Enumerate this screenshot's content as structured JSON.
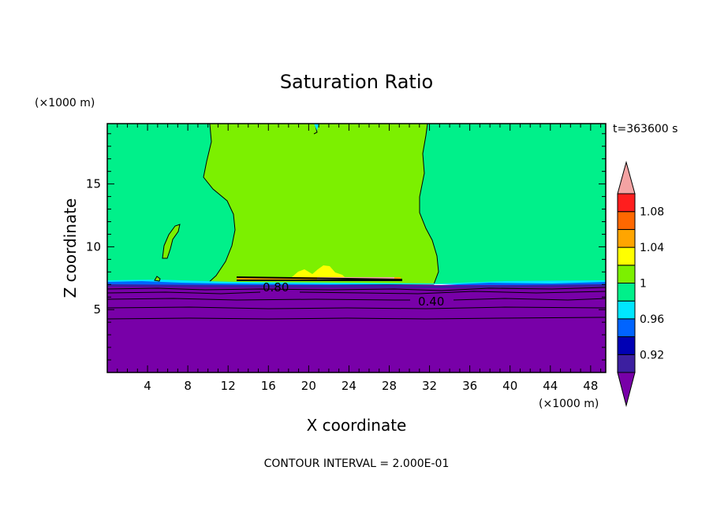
{
  "chart_data": {
    "type": "heatmap",
    "title": "Saturation Ratio",
    "xlabel": "X coordinate",
    "ylabel": "Z coordinate",
    "x_unit": "(×1000 m)",
    "y_unit": "(×1000 m)",
    "time_label": "t=363600 s",
    "footer": "CONTOUR INTERVAL = 2.000E-01",
    "xlim": [
      0,
      49.5
    ],
    "ylim": [
      0,
      19.8
    ],
    "x_ticks": [
      "4",
      "8",
      "12",
      "16",
      "20",
      "24",
      "28",
      "32",
      "36",
      "40",
      "44",
      "48"
    ],
    "x_tick_values": [
      4,
      8,
      12,
      16,
      20,
      24,
      28,
      32,
      36,
      40,
      44,
      48
    ],
    "y_ticks": [
      "5",
      "10",
      "15"
    ],
    "y_tick_values": [
      5,
      10,
      15
    ],
    "contour_labels": [
      {
        "text": "0.80",
        "x": 17,
        "z": 6.9
      },
      {
        "text": "0.40",
        "x": 32,
        "z": 5.6
      }
    ],
    "colorbar": {
      "labels": [
        "1.08",
        "1.04",
        "1",
        "0.96",
        "0.92"
      ],
      "levels": [
        0.92,
        0.94,
        0.96,
        0.98,
        1.0,
        1.02,
        1.04,
        1.06,
        1.08
      ],
      "colors": [
        "#7800a8",
        "#3c1fa0",
        "#0000b4",
        "#0064ff",
        "#00e6ff",
        "#00f08a",
        "#7cf000",
        "#ffff00",
        "#ffa500",
        "#ff6800",
        "#ff1e1e",
        "#f4a3a3"
      ]
    },
    "regions": [
      {
        "name": "lower-dry-layer",
        "value": "<0.92",
        "color": "#7800a8",
        "z_range": [
          0,
          7.1
        ]
      },
      {
        "name": "upper-side-regions",
        "value": "0.98-1.00",
        "color": "#00f08a"
      },
      {
        "name": "central-plume",
        "value": "1.00-1.02",
        "color": "#7cf000",
        "x_range": [
          10,
          33
        ]
      },
      {
        "name": "cloud-top-peak",
        "value": "1.02-1.06",
        "color": "#ffff00",
        "x_range": [
          19,
          24
        ]
      }
    ]
  }
}
